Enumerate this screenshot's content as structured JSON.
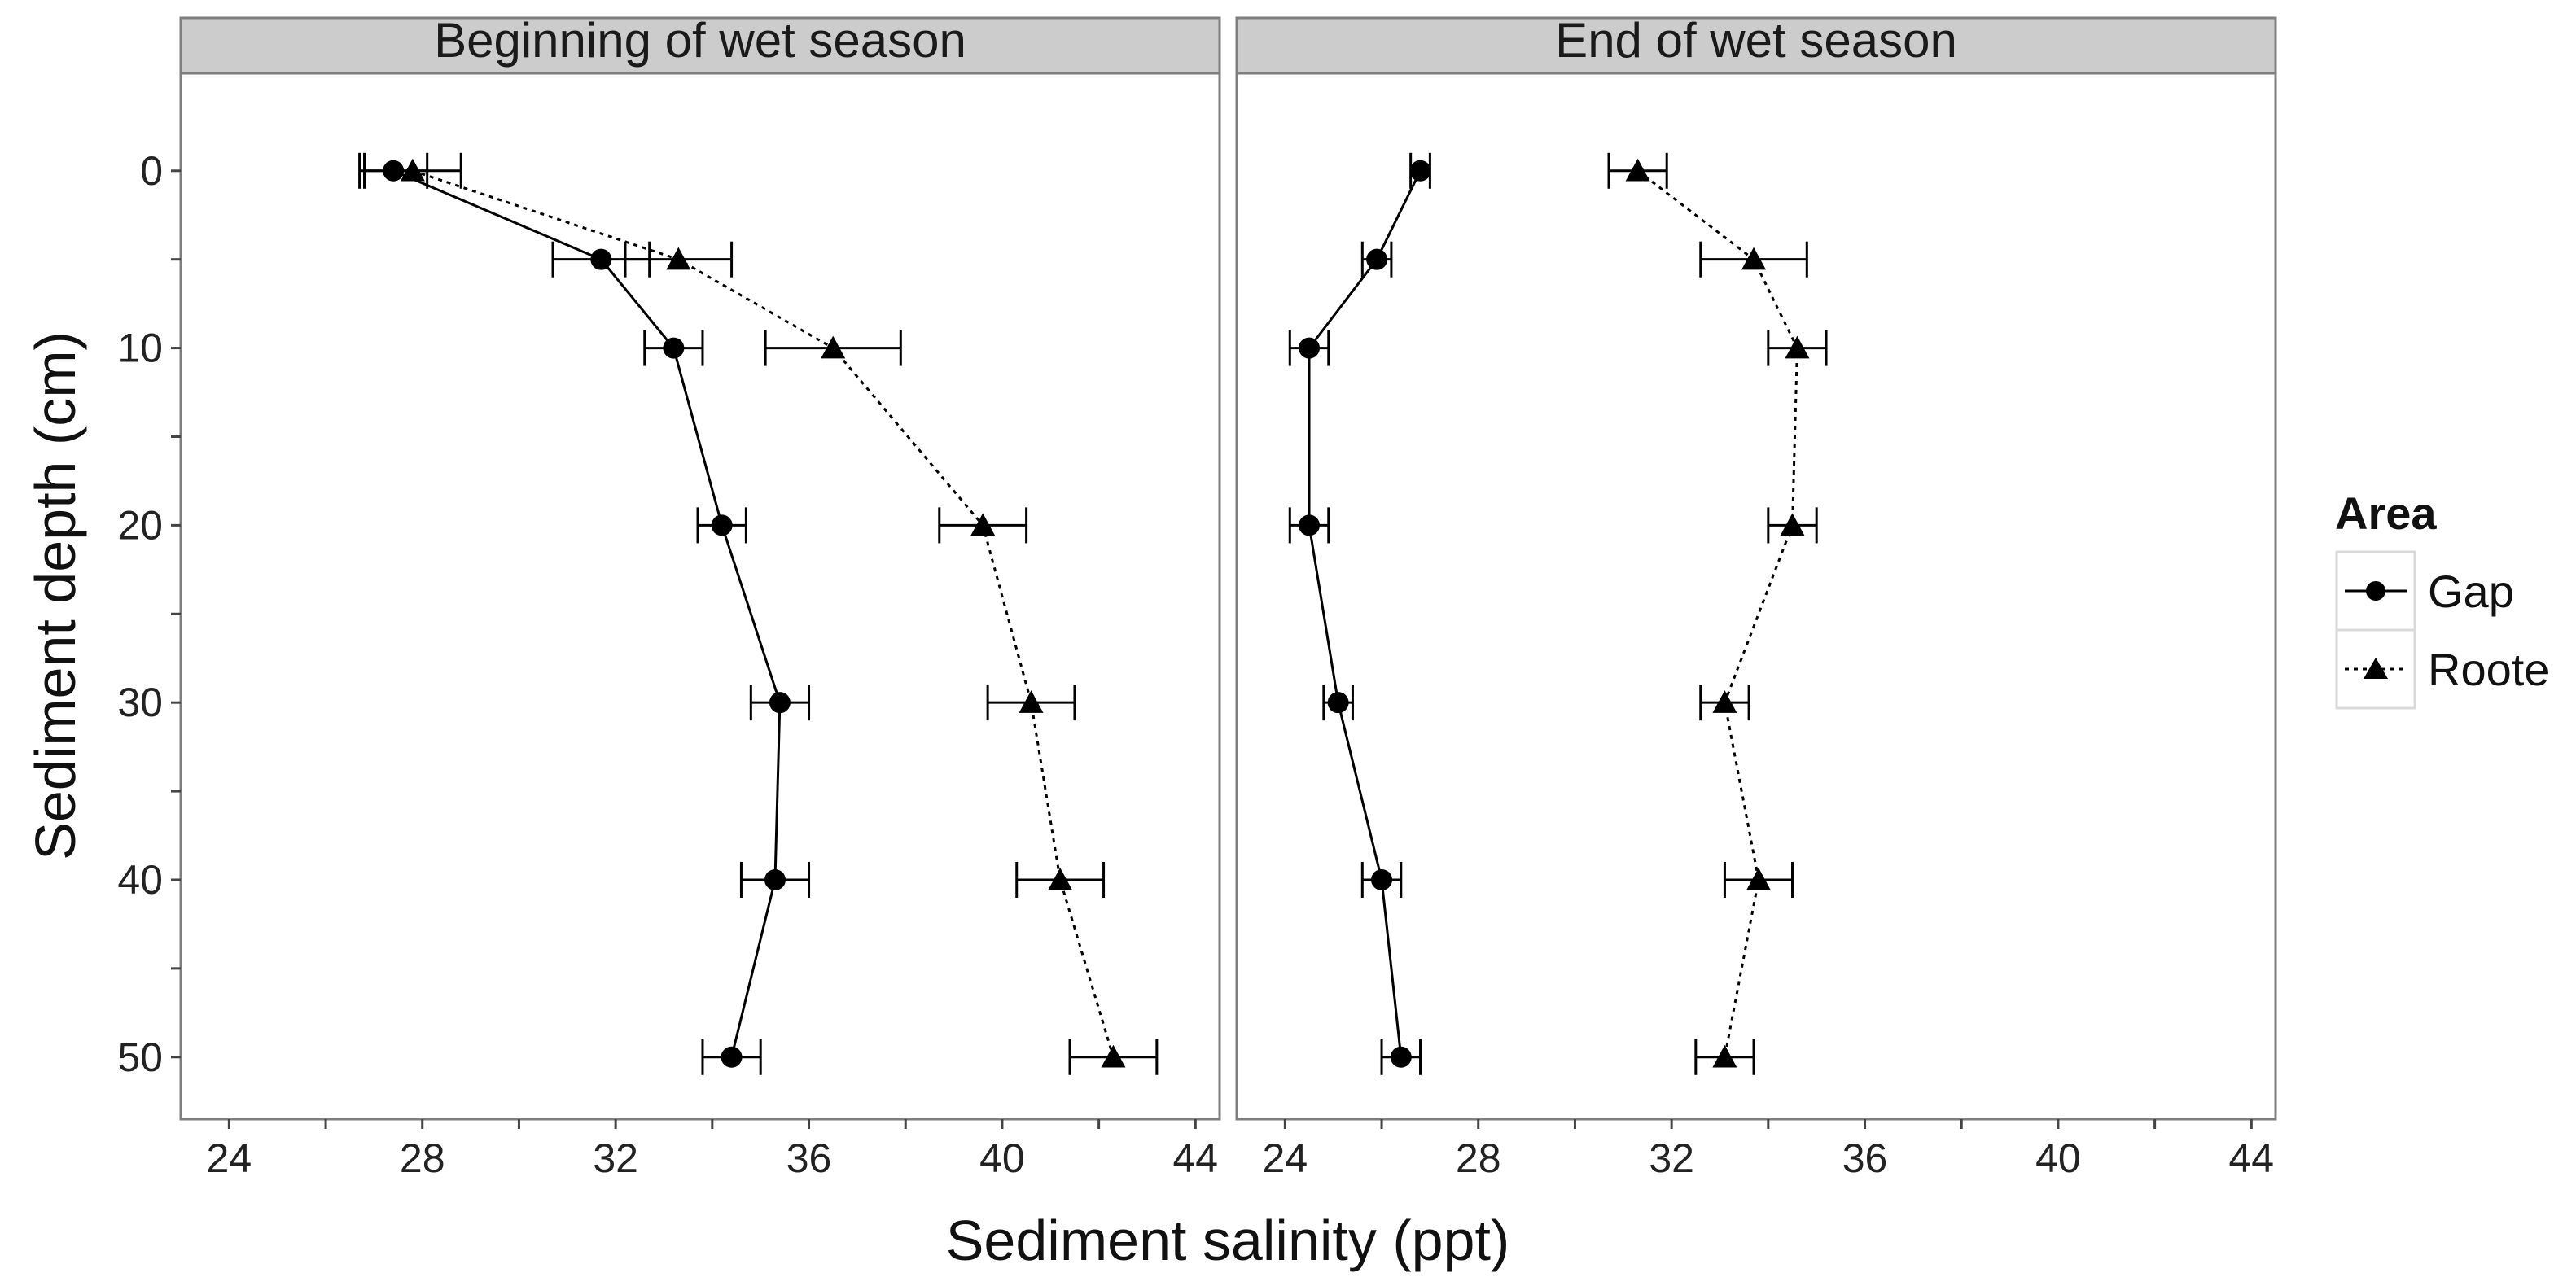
{
  "chart_data": {
    "type": "line",
    "xlabel": "Sediment salinity (ppt)",
    "ylabel": "Sediment depth (cm)",
    "xlim": [
      23,
      44.5
    ],
    "ylim": [
      -5.5,
      53.5
    ],
    "x_ticks": [
      24,
      28,
      32,
      36,
      40,
      44
    ],
    "y_ticks": [
      0,
      10,
      20,
      30,
      40,
      50
    ],
    "y_ticks_minor": [
      5,
      15,
      25,
      35,
      45
    ],
    "grid": false,
    "legend": {
      "title": "Area",
      "position": "right",
      "entries": [
        {
          "name": "Gap",
          "marker": "circle",
          "line": "solid"
        },
        {
          "name": "Roote",
          "marker": "triangle",
          "line": "dotted"
        }
      ]
    },
    "panels": [
      {
        "title": "Beginning of wet season",
        "series": [
          {
            "name": "Gap",
            "points": [
              {
                "depth": 0,
                "salinity": 27.4,
                "error": 0.7
              },
              {
                "depth": 5,
                "salinity": 31.7,
                "error": 1.0
              },
              {
                "depth": 10,
                "salinity": 33.2,
                "error": 0.6
              },
              {
                "depth": 20,
                "salinity": 34.2,
                "error": 0.5
              },
              {
                "depth": 30,
                "salinity": 35.4,
                "error": 0.6
              },
              {
                "depth": 40,
                "salinity": 35.3,
                "error": 0.7
              },
              {
                "depth": 50,
                "salinity": 34.4,
                "error": 0.6
              }
            ]
          },
          {
            "name": "Roote",
            "points": [
              {
                "depth": 0,
                "salinity": 27.8,
                "error": 1.0
              },
              {
                "depth": 5,
                "salinity": 33.3,
                "error": 1.1
              },
              {
                "depth": 10,
                "salinity": 36.5,
                "error": 1.4
              },
              {
                "depth": 20,
                "salinity": 39.6,
                "error": 0.9
              },
              {
                "depth": 30,
                "salinity": 40.6,
                "error": 0.9
              },
              {
                "depth": 40,
                "salinity": 41.2,
                "error": 0.9
              },
              {
                "depth": 50,
                "salinity": 42.3,
                "error": 0.9
              }
            ]
          }
        ]
      },
      {
        "title": "End of wet season",
        "series": [
          {
            "name": "Gap",
            "points": [
              {
                "depth": 0,
                "salinity": 26.8,
                "error": 0.2
              },
              {
                "depth": 5,
                "salinity": 25.9,
                "error": 0.3
              },
              {
                "depth": 10,
                "salinity": 24.5,
                "error": 0.4
              },
              {
                "depth": 20,
                "salinity": 24.5,
                "error": 0.4
              },
              {
                "depth": 30,
                "salinity": 25.1,
                "error": 0.3
              },
              {
                "depth": 40,
                "salinity": 26.0,
                "error": 0.4
              },
              {
                "depth": 50,
                "salinity": 26.4,
                "error": 0.4
              }
            ]
          },
          {
            "name": "Roote",
            "points": [
              {
                "depth": 0,
                "salinity": 31.3,
                "error": 0.6
              },
              {
                "depth": 5,
                "salinity": 33.7,
                "error": 1.1
              },
              {
                "depth": 10,
                "salinity": 34.6,
                "error": 0.6
              },
              {
                "depth": 20,
                "salinity": 34.5,
                "error": 0.5
              },
              {
                "depth": 30,
                "salinity": 33.1,
                "error": 0.5
              },
              {
                "depth": 40,
                "salinity": 33.8,
                "error": 0.7
              },
              {
                "depth": 50,
                "salinity": 33.1,
                "error": 0.6
              }
            ]
          }
        ]
      }
    ],
    "colors": {
      "strip_background": "#cccccc",
      "panel_border": "#7f7f7f",
      "series": "#000000"
    }
  }
}
